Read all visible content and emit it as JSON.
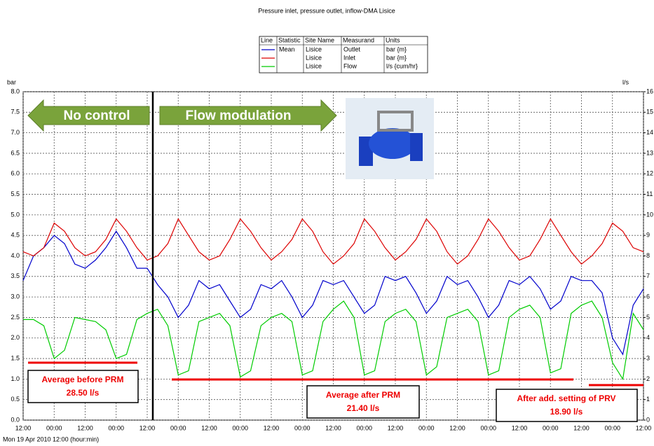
{
  "chart_data": {
    "type": "line",
    "title": "Pressure inlet, pressure outlet, inflow-DMA Lisice",
    "y_label": "bar",
    "y2_label": "l/s",
    "x_label": "Mon 19 Apr 2010 12:00 (hour:min)",
    "legend_headers": [
      "Line",
      "Statistic",
      "Site Name",
      "Measurand",
      "Units"
    ],
    "grid": true,
    "xlim": [
      0,
      240
    ],
    "xticks": [
      {
        "value": 0,
        "label": "12:00"
      },
      {
        "value": 12,
        "label": "00:00"
      },
      {
        "value": 24,
        "label": "12:00"
      },
      {
        "value": 36,
        "label": "00:00"
      },
      {
        "value": 48,
        "label": "12:00"
      },
      {
        "value": 60,
        "label": "00:00"
      },
      {
        "value": 72,
        "label": "12:00"
      },
      {
        "value": 84,
        "label": "00:00"
      },
      {
        "value": 96,
        "label": "12:00"
      },
      {
        "value": 108,
        "label": "00:00"
      },
      {
        "value": 120,
        "label": "12:00"
      },
      {
        "value": 132,
        "label": "00:00"
      },
      {
        "value": 144,
        "label": "12:00"
      },
      {
        "value": 156,
        "label": "00:00"
      },
      {
        "value": 168,
        "label": "12:00"
      },
      {
        "value": 180,
        "label": "00:00"
      },
      {
        "value": 192,
        "label": "12:00"
      },
      {
        "value": 204,
        "label": "00:00"
      },
      {
        "value": 216,
        "label": "12:00"
      },
      {
        "value": 228,
        "label": "00:00"
      },
      {
        "value": 240,
        "label": "12:00"
      }
    ],
    "ylim": [
      0,
      8
    ],
    "yticks": [
      {
        "value": 0,
        "label": "0.0"
      },
      0.5,
      {
        "value": 1,
        "label": "1.0"
      },
      1.5,
      {
        "value": 2,
        "label": "2.0"
      },
      2.5,
      {
        "value": 3,
        "label": "3.0"
      },
      3.5,
      {
        "value": 4,
        "label": "4.0"
      },
      4.5,
      {
        "value": 5,
        "label": "5.0"
      },
      5.5,
      {
        "value": 6,
        "label": "6.0"
      },
      6.5,
      {
        "value": 7,
        "label": "7.0"
      },
      7.5,
      {
        "value": 8,
        "label": "8.0"
      }
    ],
    "y2lim": [
      0,
      16
    ],
    "y2ticks": [
      0,
      1,
      2,
      3,
      4,
      5,
      6,
      7,
      8,
      9,
      10,
      11,
      12,
      13,
      14,
      15,
      16
    ],
    "x": [
      0,
      4,
      8,
      12,
      16,
      20,
      24,
      28,
      32,
      36,
      40,
      44,
      48,
      52,
      56,
      60,
      64,
      68,
      72,
      76,
      80,
      84,
      88,
      92,
      96,
      100,
      104,
      108,
      112,
      116,
      120,
      124,
      128,
      132,
      136,
      140,
      144,
      148,
      152,
      156,
      160,
      164,
      168,
      172,
      176,
      180,
      184,
      188,
      192,
      196,
      200,
      204,
      208,
      212,
      216,
      220,
      224,
      228,
      232,
      236,
      240
    ],
    "series": [
      {
        "name": "Outlet",
        "statistic": "Mean",
        "site": "Lisice",
        "units": "bar {m}",
        "color": "#0000cc",
        "values": [
          3.4,
          4.0,
          4.2,
          4.5,
          4.3,
          3.8,
          3.7,
          3.9,
          4.2,
          4.6,
          4.2,
          3.7,
          3.7,
          3.3,
          3.0,
          2.5,
          2.8,
          3.4,
          3.2,
          3.3,
          2.9,
          2.5,
          2.7,
          3.3,
          3.2,
          3.4,
          3.0,
          2.5,
          2.8,
          3.4,
          3.3,
          3.4,
          3.0,
          2.6,
          2.8,
          3.5,
          3.4,
          3.5,
          3.1,
          2.6,
          2.9,
          3.5,
          3.3,
          3.4,
          3.0,
          2.5,
          2.8,
          3.4,
          3.3,
          3.5,
          3.2,
          2.7,
          2.9,
          3.5,
          3.4,
          3.4,
          3.1,
          2.0,
          1.6,
          2.8,
          3.2
        ]
      },
      {
        "name": "Inlet",
        "site": "Lisice",
        "units": "bar {m}",
        "color": "#dd0000",
        "values": [
          4.1,
          4.0,
          4.2,
          4.8,
          4.6,
          4.2,
          4.0,
          4.1,
          4.4,
          4.9,
          4.6,
          4.2,
          3.9,
          4.0,
          4.3,
          4.9,
          4.5,
          4.1,
          3.9,
          4.0,
          4.4,
          4.9,
          4.6,
          4.2,
          3.9,
          4.1,
          4.4,
          4.9,
          4.6,
          4.1,
          3.8,
          4.0,
          4.3,
          4.9,
          4.6,
          4.2,
          3.9,
          4.1,
          4.4,
          4.9,
          4.6,
          4.1,
          3.8,
          4.0,
          4.4,
          4.9,
          4.6,
          4.2,
          3.9,
          4.0,
          4.4,
          4.9,
          4.5,
          4.1,
          3.8,
          4.0,
          4.3,
          4.8,
          4.6,
          4.2,
          4.1
        ]
      },
      {
        "name": "Flow",
        "site": "Lisice",
        "units": "l/s {cum/hr}",
        "color": "#00cc00",
        "axis": "y2",
        "values": [
          4.9,
          4.9,
          4.6,
          3.0,
          3.4,
          5.0,
          4.9,
          4.8,
          4.4,
          3.0,
          3.2,
          4.9,
          5.2,
          5.4,
          4.6,
          2.2,
          2.4,
          4.8,
          5.0,
          5.2,
          4.6,
          2.1,
          2.4,
          4.6,
          5.0,
          5.2,
          4.8,
          2.2,
          2.4,
          4.8,
          5.4,
          5.8,
          5.0,
          2.2,
          2.4,
          4.8,
          5.2,
          5.4,
          4.8,
          2.2,
          2.6,
          5.0,
          5.2,
          5.4,
          4.8,
          2.2,
          2.4,
          5.0,
          5.4,
          5.6,
          5.0,
          2.3,
          2.5,
          5.2,
          5.6,
          5.8,
          5.0,
          2.8,
          2.0,
          5.2,
          4.4
        ]
      }
    ],
    "arrows": [
      "No control",
      "Flow modulation"
    ],
    "annotations": [
      {
        "text": "Average before PRM",
        "value": "28.50 l/s"
      },
      {
        "text": "Average after PRM",
        "value": "21.40 l/s"
      },
      {
        "text": "After add. setting of  PRV",
        "value": "18.90 l/s"
      }
    ]
  }
}
